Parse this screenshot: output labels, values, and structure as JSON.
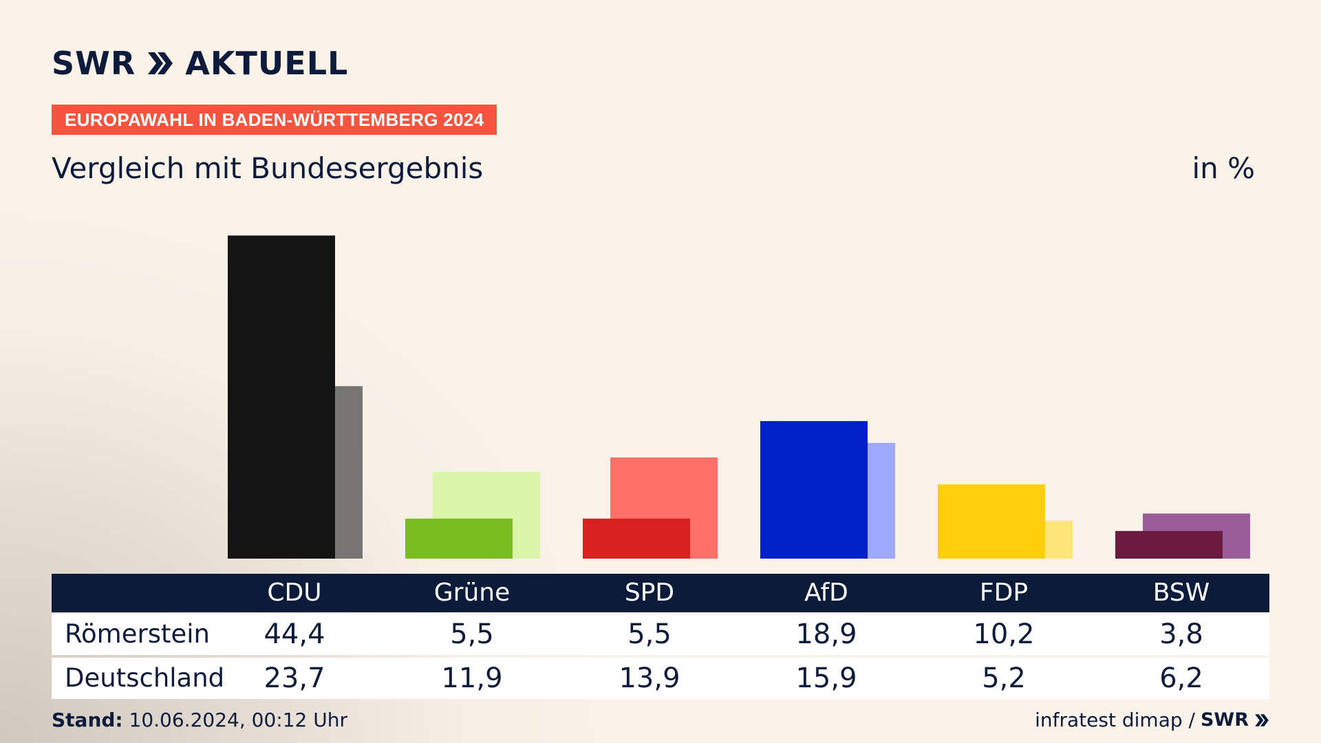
{
  "header": {
    "logo_text": "SWR",
    "logo_suffix": "AKTUELL",
    "kicker": "EUROPAWAHL IN BADEN-WÜRTTEMBERG 2024",
    "subtitle": "Vergleich mit Bundesergebnis",
    "unit": "in %"
  },
  "chart_data": {
    "type": "bar",
    "title": "Vergleich mit Bundesergebnis",
    "unit": "in %",
    "categories": [
      "CDU",
      "Grüne",
      "SPD",
      "AfD",
      "FDP",
      "BSW"
    ],
    "series": [
      {
        "name": "Römerstein",
        "values": [
          44.4,
          5.5,
          5.5,
          18.9,
          10.2,
          3.8
        ],
        "colors": [
          "#141414",
          "#79be1e",
          "#d7211e",
          "#0021c8",
          "#ffcf0d",
          "#6b1b40"
        ]
      },
      {
        "name": "Deutschland",
        "values": [
          23.7,
          11.9,
          13.9,
          15.9,
          5.2,
          6.2
        ],
        "colors": [
          "#767574",
          "#d9f5aa",
          "#ff7168",
          "#9fa9ff",
          "#ffe47a",
          "#9b5d99"
        ]
      }
    ],
    "ylim": [
      0,
      45
    ]
  },
  "table": {
    "headers": [
      "CDU",
      "Grüne",
      "SPD",
      "AfD",
      "FDP",
      "BSW"
    ],
    "rows": [
      {
        "label": "Römerstein",
        "values": [
          "44,4",
          "5,5",
          "5,5",
          "18,9",
          "10,2",
          "3,8"
        ]
      },
      {
        "label": "Deutschland",
        "values": [
          "23,7",
          "11,9",
          "13,9",
          "15,9",
          "5,2",
          "6,2"
        ]
      }
    ]
  },
  "footer": {
    "stand_label": "Stand:",
    "stand_value": "10.06.2024, 00:12 Uhr",
    "source": "infratest dimap /",
    "brand": "SWR"
  }
}
